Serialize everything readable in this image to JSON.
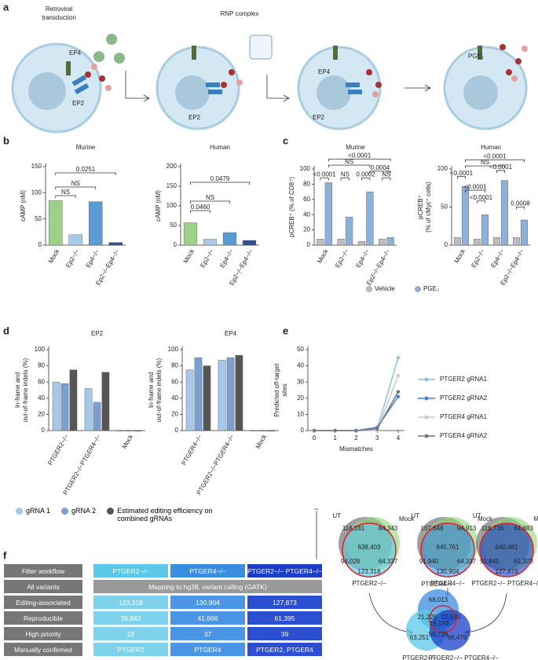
{
  "panel_letters": [
    "a",
    "b",
    "c",
    "d",
    "e",
    "f"
  ],
  "schematic": {
    "retroviral_transduction": [
      "Retroviral",
      "transduction"
    ],
    "rnp": "RNP complex",
    "receptors": [
      "EP4",
      "EP2",
      "EP2",
      "EP4",
      "EP2"
    ],
    "ligand": "PGE₂"
  },
  "chart_data": [
    {
      "type": "bar",
      "title": "Murine",
      "ylabel": "cAMP (nM)",
      "categories": [
        "Mock",
        "Ep2−/−",
        "Ep4−/−",
        "Ep2−/−Ep4−/−"
      ],
      "values": [
        85,
        20,
        83,
        5
      ],
      "colors": [
        "#9fd08a",
        "#a6cbe8",
        "#5b9bd5",
        "#2f4f9a"
      ],
      "ylim": [
        0,
        150
      ],
      "yticks": [
        0,
        50,
        100,
        150
      ],
      "annotations": [
        "NS",
        "NS",
        "0.0251"
      ]
    },
    {
      "type": "bar",
      "title": "Human",
      "ylabel": "cAMP (nM)",
      "categories": [
        "Mock",
        "Ep2−/−",
        "Ep4−/−",
        "Ep2−/−Ep4−/−"
      ],
      "values": [
        57,
        15,
        32,
        12
      ],
      "colors": [
        "#9fd08a",
        "#a6cbe8",
        "#5b9bd5",
        "#2f4f9a"
      ],
      "ylim": [
        0,
        200
      ],
      "yticks": [
        0,
        50,
        100,
        150,
        200
      ],
      "annotations": [
        "0.0460",
        "NS",
        "0.0479"
      ]
    },
    {
      "type": "bar",
      "title": "Murine",
      "ylabel": "pCREB⁺ (% of CD8⁺)",
      "categories": [
        "Mock",
        "Ep2−/−",
        "Ep4−/−",
        "Ep2−/−Ep4−/−"
      ],
      "series": [
        {
          "name": "Vehicle",
          "color": "#bdbdbd",
          "values": [
            8,
            8,
            5,
            8
          ]
        },
        {
          "name": "PGE₂",
          "color": "#8fb0d8",
          "values": [
            82,
            37,
            70,
            10
          ]
        }
      ],
      "ylim": [
        0,
        100
      ],
      "yticks": [
        0,
        20,
        40,
        60,
        80,
        100
      ],
      "annotations": [
        "<0.0001",
        "NS",
        "0.0002",
        "NS",
        "0.0004",
        "NS",
        "<0.0001"
      ]
    },
    {
      "type": "bar",
      "title": "Human",
      "ylabel": [
        "pCREB⁺",
        "(% of cMyc⁺ cells)"
      ],
      "categories": [
        "Mock",
        "Ep2−/−",
        "Ep4−/−",
        "Ep2−/−Ep4−/−"
      ],
      "series": [
        {
          "color": "#bdbdbd",
          "values": [
            10,
            8,
            10,
            10
          ]
        },
        {
          "color": "#8fb0d8",
          "values": [
            77,
            40,
            85,
            33
          ]
        }
      ],
      "ylim": [
        0,
        100
      ],
      "yticks": [
        0,
        50,
        100
      ],
      "annotations": [
        "<0.0001",
        "<0.0001",
        "<0.0001",
        "0.0008",
        "<0.0001",
        "NS",
        "<0.0001"
      ]
    },
    {
      "type": "bar",
      "title": "EP2",
      "ylabel": [
        "In-frame and",
        "out-of-frame indels (%)"
      ],
      "categories": [
        "PTGER2−/−",
        "PTGER2−/−PTGER4−/−",
        "Mock"
      ],
      "series": [
        {
          "name": "gRNA 1",
          "color": "#a6c8ea",
          "values": [
            60,
            52,
            0
          ]
        },
        {
          "name": "gRNA 2",
          "color": "#7a9fd0",
          "values": [
            58,
            35,
            0
          ]
        },
        {
          "name": "Estimated editing efficiency on combined gRNAs",
          "color": "#555555",
          "values": [
            75,
            72,
            0
          ]
        }
      ],
      "ylim": [
        0,
        100
      ],
      "yticks": [
        0,
        20,
        40,
        60,
        80,
        100
      ]
    },
    {
      "type": "bar",
      "title": "EP4",
      "ylabel": [
        "In-frame and",
        "out-of-frame indels (%)"
      ],
      "categories": [
        "PTGER4−/−",
        "PTGER2−/−PTGER4−/−",
        "Mock"
      ],
      "series": [
        {
          "color": "#a6c8ea",
          "values": [
            75,
            87,
            0
          ]
        },
        {
          "color": "#7a9fd0",
          "values": [
            90,
            90,
            0
          ]
        },
        {
          "color": "#555555",
          "values": [
            80,
            93,
            0
          ]
        }
      ],
      "ylim": [
        0,
        100
      ],
      "yticks": [
        0,
        20,
        40,
        60,
        80,
        100
      ]
    },
    {
      "type": "line",
      "xlabel": "Mismatches",
      "ylabel": [
        "Predicted off-target",
        "sites"
      ],
      "x": [
        0,
        1,
        2,
        3,
        4
      ],
      "series": [
        {
          "name": "PTGER2 gRNA1",
          "color": "#8dbde8",
          "values": [
            0,
            0,
            0,
            1,
            45
          ]
        },
        {
          "name": "PTGER2 gRNA2",
          "color": "#3f82d0",
          "values": [
            0,
            0,
            0,
            2,
            21
          ]
        },
        {
          "name": "PTGER4 gRNA1",
          "color": "#c8c8c8",
          "values": [
            0,
            0,
            0,
            0,
            34
          ]
        },
        {
          "name": "PTGER4 gRNA2",
          "color": "#777777",
          "values": [
            0,
            0,
            0,
            1,
            24
          ]
        }
      ],
      "xlim": [
        -0.3,
        4.3
      ],
      "xticks": [
        0,
        1,
        2,
        3,
        4
      ],
      "ylim": [
        0,
        50
      ],
      "yticks": [
        0,
        10,
        20,
        30,
        40,
        50
      ]
    }
  ],
  "f": {
    "table": {
      "rows": [
        [
          "Filter workflow",
          "PTGER2−/−",
          "PTGER4−/−",
          "PTGER2−/− PTGER4−/−"
        ],
        [
          "All variants",
          "Mapping to hg38, variant calling (GATK)"
        ],
        [
          "Editing-associated",
          "123,318",
          "130,904",
          "127,873"
        ],
        [
          "Reproducible",
          "38,842",
          "41,666",
          "61,395"
        ],
        [
          "High priority",
          "19",
          "37",
          "39"
        ],
        [
          "Manually confirmed",
          "PTGER2",
          "PTGER4",
          "PTGER2, PTGER4"
        ]
      ]
    },
    "venns": [
      [
        "UT",
        "Mock",
        "118,181",
        "94,028",
        "84,343",
        "638,403",
        "64,337",
        "123,318",
        "PTGER2−/−"
      ],
      [
        "UT",
        "Mock",
        "107,648",
        "91,940",
        "94,913",
        "645,761",
        "64,337",
        "130,904",
        "PTGER4−/−"
      ],
      [
        "UT",
        "Mock",
        "116,736",
        "91,845",
        "64,883",
        "640,481",
        "61,373",
        "127,873",
        "PTGER2−/− PTGER4−/−"
      ]
    ],
    "venn_bottom": [
      "68,013",
      "21,225",
      "22,533",
      "19,193",
      "59,729",
      "63,251",
      "66,479",
      "PTGER2−/−",
      "PTGER4−/−",
      "PTGER2−/− PTGER4−/−"
    ]
  }
}
